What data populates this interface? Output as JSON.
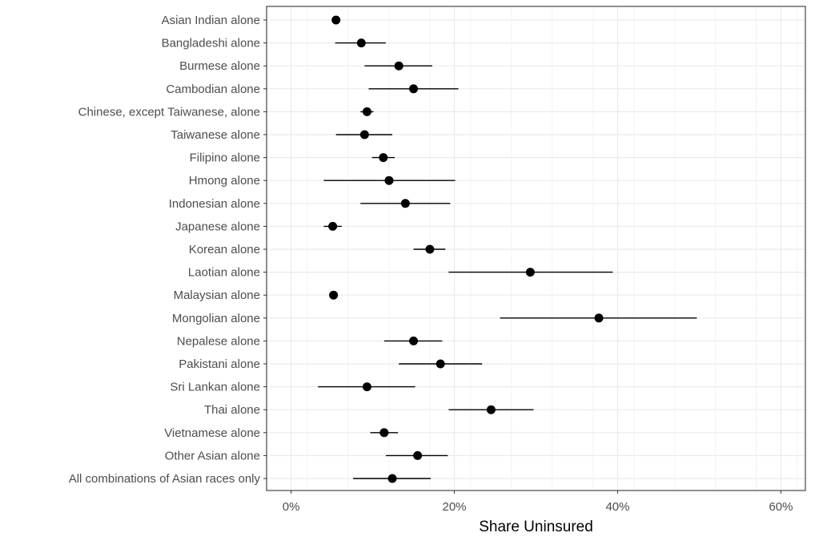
{
  "chart_data": {
    "type": "scatter",
    "xlabel": "Share Uninsured",
    "ylabel": "",
    "xlim": [
      -0.03,
      0.63
    ],
    "x_ticks": [
      0,
      0.2,
      0.4,
      0.6
    ],
    "x_tick_labels": [
      "0%",
      "20%",
      "40%",
      "60%"
    ],
    "grid": true,
    "theme": "bw",
    "points": [
      {
        "category": "Asian Indian alone",
        "value": 0.055,
        "low": 0.05,
        "high": 0.06
      },
      {
        "category": "Bangladeshi alone",
        "value": 0.086,
        "low": 0.054,
        "high": 0.116
      },
      {
        "category": "Burmese alone",
        "value": 0.132,
        "low": 0.09,
        "high": 0.173
      },
      {
        "category": "Cambodian alone",
        "value": 0.15,
        "low": 0.095,
        "high": 0.205
      },
      {
        "category": "Chinese, except Taiwanese, alone",
        "value": 0.093,
        "low": 0.085,
        "high": 0.101
      },
      {
        "category": "Taiwanese alone",
        "value": 0.09,
        "low": 0.055,
        "high": 0.124
      },
      {
        "category": "Filipino alone",
        "value": 0.113,
        "low": 0.099,
        "high": 0.127
      },
      {
        "category": "Hmong alone",
        "value": 0.12,
        "low": 0.04,
        "high": 0.201
      },
      {
        "category": "Indonesian alone",
        "value": 0.14,
        "low": 0.085,
        "high": 0.195
      },
      {
        "category": "Japanese alone",
        "value": 0.051,
        "low": 0.04,
        "high": 0.062
      },
      {
        "category": "Korean alone",
        "value": 0.17,
        "low": 0.15,
        "high": 0.189
      },
      {
        "category": "Laotian alone",
        "value": 0.293,
        "low": 0.193,
        "high": 0.394
      },
      {
        "category": "Malaysian alone",
        "value": 0.052,
        "low": 0.049,
        "high": 0.055
      },
      {
        "category": "Mongolian alone",
        "value": 0.377,
        "low": 0.256,
        "high": 0.497
      },
      {
        "category": "Nepalese alone",
        "value": 0.15,
        "low": 0.114,
        "high": 0.185
      },
      {
        "category": "Pakistani alone",
        "value": 0.183,
        "low": 0.132,
        "high": 0.234
      },
      {
        "category": "Sri Lankan alone",
        "value": 0.093,
        "low": 0.033,
        "high": 0.152
      },
      {
        "category": "Thai alone",
        "value": 0.245,
        "low": 0.193,
        "high": 0.297
      },
      {
        "category": "Vietnamese alone",
        "value": 0.114,
        "low": 0.097,
        "high": 0.131
      },
      {
        "category": "Other Asian alone",
        "value": 0.155,
        "low": 0.116,
        "high": 0.192
      },
      {
        "category": "All combinations of Asian races only",
        "value": 0.124,
        "low": 0.076,
        "high": 0.171
      }
    ],
    "colors": {
      "point": "#000000",
      "errorbar": "#000000",
      "grid": "#ebebeb",
      "panel_border": "#333333",
      "label": "#4d4d4d"
    }
  }
}
